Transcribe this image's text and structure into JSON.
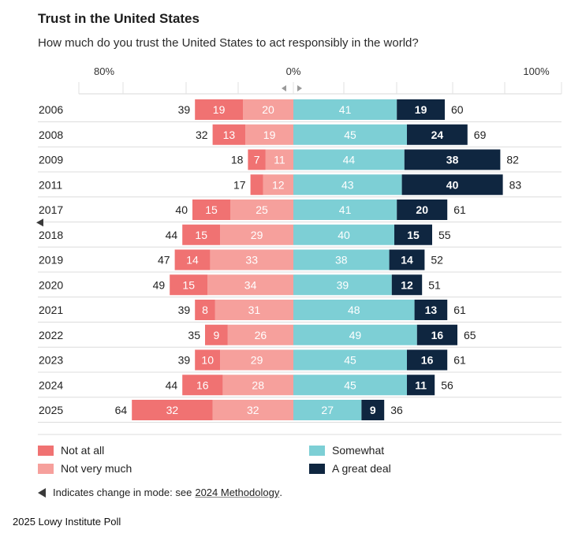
{
  "chart_data": {
    "type": "bar",
    "title": "Trust in the United States",
    "subtitle": "How much do you trust the United States to act responsibly in the world?",
    "axis": {
      "left_label": "80%",
      "center_label": "0%",
      "right_label": "100%",
      "left_max": 80,
      "right_max": 100
    },
    "categories": [
      "2006",
      "2008",
      "2009",
      "2011",
      "2017",
      "2018",
      "2019",
      "2020",
      "2021",
      "2022",
      "2023",
      "2024",
      "2025"
    ],
    "series": [
      {
        "name": "Not at all",
        "side": "negative",
        "color": "#f07272",
        "values": [
          19,
          13,
          7,
          5,
          15,
          15,
          14,
          15,
          8,
          9,
          10,
          16,
          32
        ]
      },
      {
        "name": "Not very much",
        "side": "negative",
        "color": "#f6a09c",
        "values": [
          20,
          19,
          11,
          12,
          25,
          29,
          33,
          34,
          31,
          26,
          29,
          28,
          32
        ]
      },
      {
        "name": "Somewhat",
        "side": "positive",
        "color": "#7dcfd5",
        "values": [
          41,
          45,
          44,
          43,
          41,
          40,
          38,
          39,
          48,
          49,
          45,
          45,
          27
        ]
      },
      {
        "name": "A great deal",
        "side": "positive",
        "color": "#0f2640",
        "values": [
          19,
          24,
          38,
          40,
          20,
          15,
          14,
          12,
          13,
          16,
          16,
          11,
          9
        ]
      }
    ],
    "segment_labels": {
      "Not at all": [
        "19",
        "13",
        "7",
        "",
        "15",
        "15",
        "14",
        "15",
        "8",
        "9",
        "10",
        "16",
        "32"
      ],
      "Not very much": [
        "20",
        "19",
        "11",
        "12",
        "25",
        "29",
        "33",
        "34",
        "31",
        "26",
        "29",
        "28",
        "32"
      ],
      "Somewhat": [
        "41",
        "45",
        "44",
        "43",
        "41",
        "40",
        "38",
        "39",
        "48",
        "49",
        "45",
        "45",
        "27"
      ],
      "A great deal": [
        "19",
        "24",
        "38",
        "40",
        "20",
        "15",
        "14",
        "12",
        "13",
        "16",
        "16",
        "11",
        "9"
      ]
    },
    "totals_negative": [
      39,
      32,
      18,
      17,
      40,
      44,
      47,
      49,
      39,
      35,
      39,
      44,
      64
    ],
    "totals_positive": [
      60,
      69,
      82,
      83,
      61,
      55,
      52,
      51,
      61,
      65,
      61,
      56,
      36
    ],
    "mode_change_marker_year": "2018"
  },
  "legend": {
    "not_at_all": "Not at all",
    "not_very_much": "Not very much",
    "somewhat": "Somewhat",
    "great_deal": "A great deal"
  },
  "colors": {
    "not_at_all": "#f07272",
    "not_very_much": "#f6a09c",
    "somewhat": "#7dcfd5",
    "great_deal": "#0f2640"
  },
  "note": {
    "text": "Indicates change in mode: see",
    "link": "2024 Methodology",
    "end": "."
  },
  "source": "2025 Lowy Institute Poll"
}
